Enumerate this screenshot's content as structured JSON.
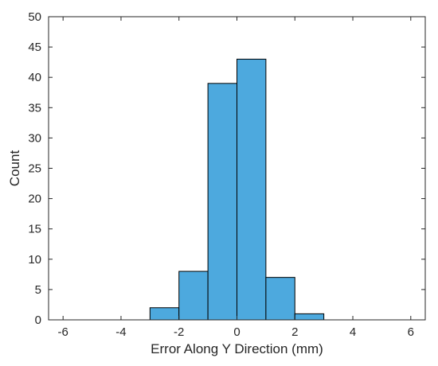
{
  "chart_data": {
    "type": "bar",
    "subtype": "histogram",
    "title": "",
    "xlabel": "Error Along Y Direction (mm)",
    "ylabel": "Count",
    "xlim": [
      -6.5,
      6.5
    ],
    "ylim": [
      0,
      50
    ],
    "xticks": [
      -6,
      -4,
      -2,
      0,
      2,
      4,
      6
    ],
    "xtick_labels": [
      "-6",
      "-4",
      "-2",
      "0",
      "2",
      "4",
      "6"
    ],
    "yticks": [
      0,
      5,
      10,
      15,
      20,
      25,
      30,
      35,
      40,
      45,
      50
    ],
    "ytick_labels": [
      "0",
      "5",
      "10",
      "15",
      "20",
      "25",
      "30",
      "35",
      "40",
      "45",
      "50"
    ],
    "bin_edges": [
      -3,
      -2,
      -1,
      0,
      1,
      2,
      3
    ],
    "values": [
      2,
      8,
      39,
      43,
      7,
      1
    ],
    "grid": false,
    "bar_color": "#4DA9DE",
    "bar_edge_color": "#000000"
  }
}
